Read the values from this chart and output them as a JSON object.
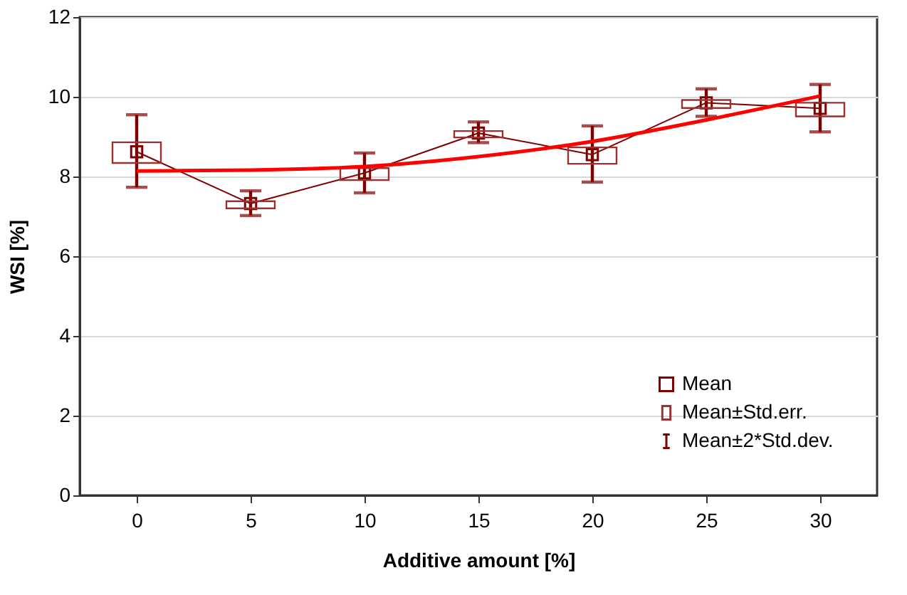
{
  "chart_data": {
    "type": "line",
    "xlabel": "Additive amount [%]",
    "ylabel": "WSI [%]",
    "xlim": [
      -2.5,
      32.5
    ],
    "xticks": [
      0,
      5,
      10,
      15,
      20,
      25,
      30
    ],
    "ylim": [
      0,
      12
    ],
    "yticks": [
      0,
      2,
      4,
      6,
      8,
      10,
      12
    ],
    "grid": "y",
    "legend": "bottom right",
    "annotations": [
      "Mean±2*Std.dev."
    ],
    "x": [
      0,
      5,
      10,
      15,
      20,
      25,
      30
    ],
    "series": [
      {
        "name": "Mean",
        "marker": "square",
        "color": "#800000",
        "values": [
          8.62,
          7.32,
          8.09,
          9.09,
          8.55,
          9.85,
          9.71
        ],
        "errors": [
          [
            7.73,
            9.55
          ],
          [
            7.02,
            7.64
          ],
          [
            7.59,
            8.59
          ],
          [
            8.85,
            9.37
          ],
          [
            7.86,
            9.27
          ],
          [
            9.51,
            10.2
          ],
          [
            9.12,
            10.31
          ]
        ]
      },
      {
        "name": "Mean±Std.err.",
        "type": "bar",
        "color": "#993333",
        "base": [
          8.34,
          7.2,
          7.91,
          8.98,
          8.32,
          9.72,
          9.51
        ],
        "values": [
          0.52,
          0.18,
          0.3,
          0.16,
          0.41,
          0.2,
          0.34
        ]
      },
      {
        "type": "line",
        "marker": "none",
        "color": "#ff0000",
        "x": [
          0,
          5,
          10,
          15,
          20,
          25,
          30
        ],
        "values": [
          8.14,
          8.16,
          8.25,
          8.5,
          8.88,
          9.42,
          10.02
        ]
      }
    ]
  }
}
